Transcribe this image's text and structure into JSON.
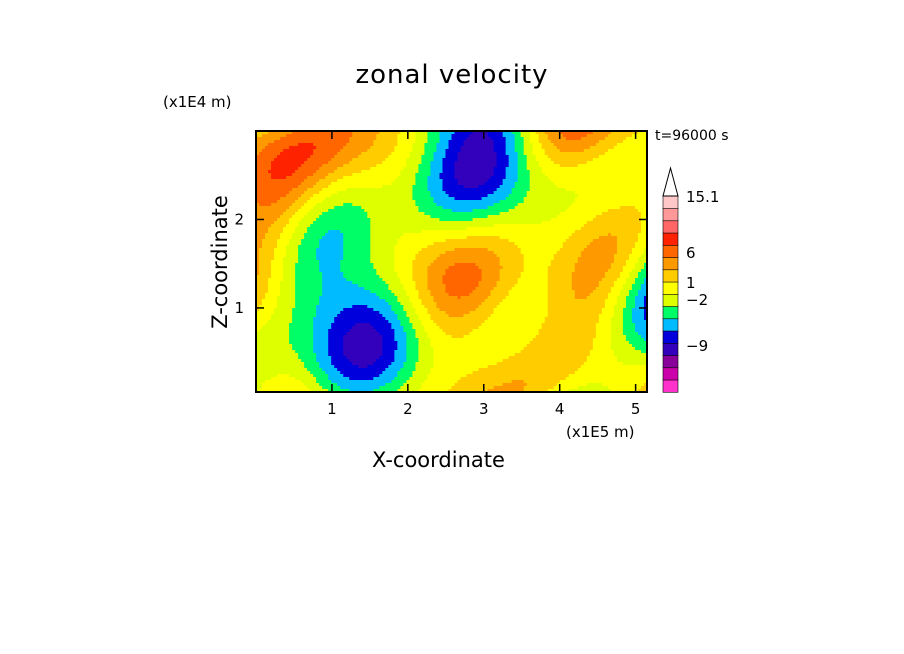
{
  "chart_data": {
    "type": "heatmap",
    "title": "zonal velocity",
    "xlabel": "X-coordinate",
    "ylabel": "Z-coordinate",
    "x_unit": "(x1E5 m)",
    "z_unit": "(x1E4 m)",
    "time_label": "t=96000 s",
    "xlim": [
      0,
      5.15
    ],
    "ylim": [
      0.05,
      3.0
    ],
    "x_ticks": [
      "1",
      "2",
      "3",
      "4",
      "5"
    ],
    "y_ticks": [
      "1",
      "2"
    ],
    "colorbar": {
      "labels": [
        "15.1",
        "6",
        "1",
        "−2",
        "−9"
      ],
      "colors": [
        "#ff33cc",
        "#cc00aa",
        "#880099",
        "#3300bb",
        "#0000dd",
        "#00bbff",
        "#00ff66",
        "#ddff00",
        "#ffff00",
        "#ffcc00",
        "#ff9900",
        "#ff6600",
        "#ff2200",
        "#ff6666",
        "#ff9999",
        "#ffc8c8"
      ],
      "extend": "max"
    }
  }
}
